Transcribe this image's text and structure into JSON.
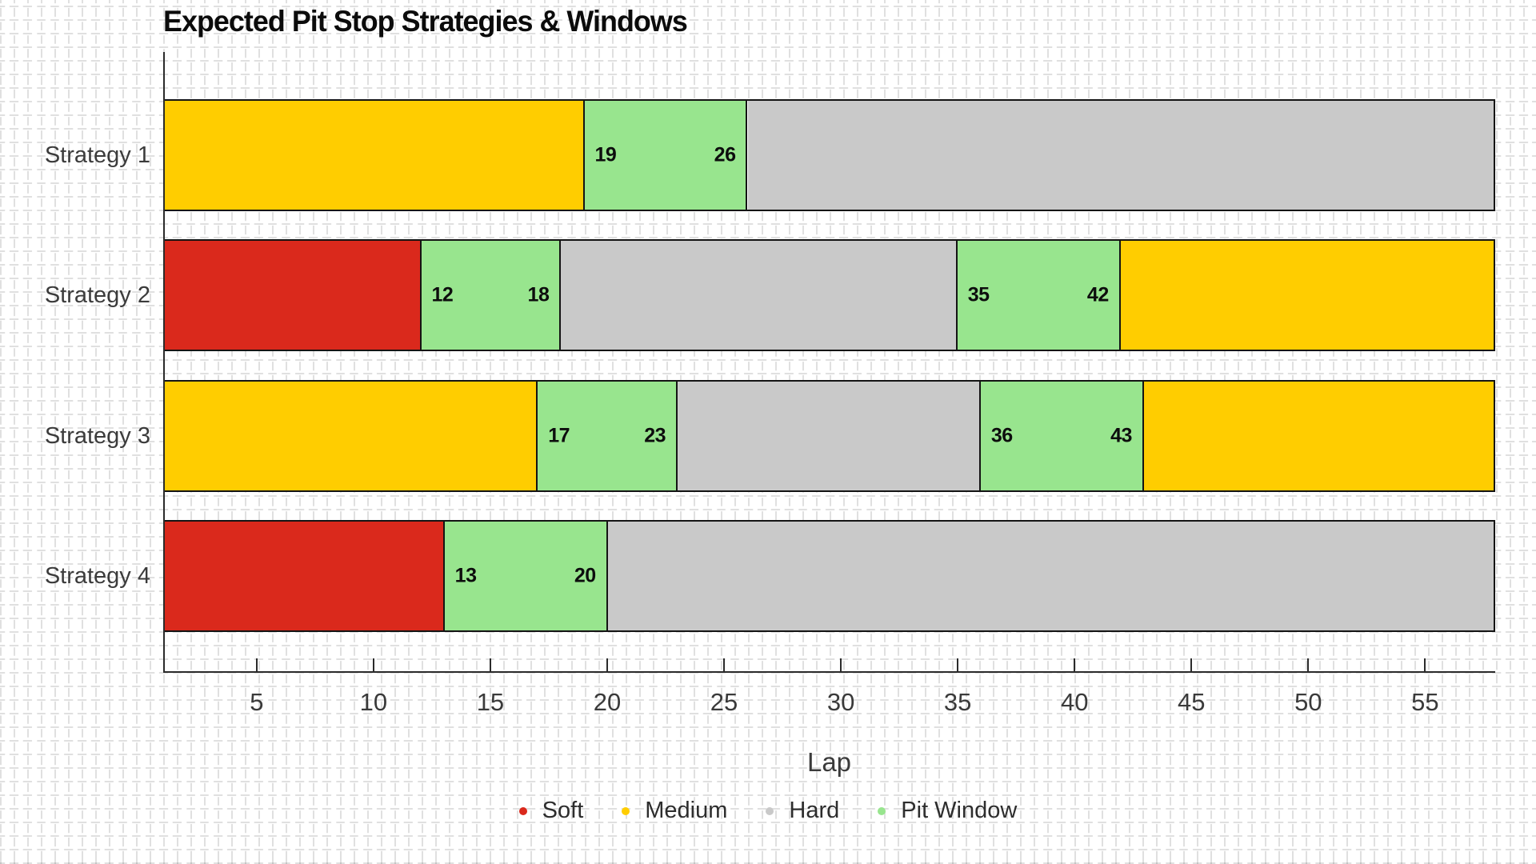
{
  "page": {
    "background_color": "#ffffff"
  },
  "chart_data": {
    "type": "bar",
    "subtype": "horizontal-stacked-timeline",
    "title": "Expected Pit Stop Strategies & Windows",
    "xlabel": "Lap",
    "x_range": [
      1,
      58
    ],
    "x_ticks": [
      5,
      10,
      15,
      20,
      25,
      30,
      35,
      40,
      45,
      50,
      55
    ],
    "grid": "page-wide plus-pattern background",
    "legend_position": "bottom-center",
    "categories": [
      "Strategy 1",
      "Strategy 2",
      "Strategy 3",
      "Strategy 4"
    ],
    "compound_colors": {
      "Soft": "#DA291C",
      "Medium": "#FFCD00",
      "Hard": "#C9C9C9",
      "Pit Window": "#98E58E"
    },
    "legend": [
      {
        "label": "Soft",
        "color": "#DA291C"
      },
      {
        "label": "Medium",
        "color": "#FFCD00"
      },
      {
        "label": "Hard",
        "color": "#C9C9C9"
      },
      {
        "label": "Pit Window",
        "color": "#98E58E"
      }
    ],
    "strategies": [
      {
        "label": "Strategy 1",
        "segments": [
          {
            "compound": "Medium",
            "start_lap": 1,
            "end_lap": 19,
            "labeled": false
          },
          {
            "compound": "Pit Window",
            "start_lap": 19,
            "end_lap": 26,
            "labeled": true
          },
          {
            "compound": "Hard",
            "start_lap": 26,
            "end_lap": 58,
            "labeled": false
          }
        ]
      },
      {
        "label": "Strategy 2",
        "segments": [
          {
            "compound": "Soft",
            "start_lap": 1,
            "end_lap": 12,
            "labeled": false
          },
          {
            "compound": "Pit Window",
            "start_lap": 12,
            "end_lap": 18,
            "labeled": true
          },
          {
            "compound": "Hard",
            "start_lap": 18,
            "end_lap": 35,
            "labeled": false
          },
          {
            "compound": "Pit Window",
            "start_lap": 35,
            "end_lap": 42,
            "labeled": true
          },
          {
            "compound": "Medium",
            "start_lap": 42,
            "end_lap": 58,
            "labeled": false
          }
        ]
      },
      {
        "label": "Strategy 3",
        "segments": [
          {
            "compound": "Medium",
            "start_lap": 1,
            "end_lap": 17,
            "labeled": false
          },
          {
            "compound": "Pit Window",
            "start_lap": 17,
            "end_lap": 23,
            "labeled": true
          },
          {
            "compound": "Hard",
            "start_lap": 23,
            "end_lap": 36,
            "labeled": false
          },
          {
            "compound": "Pit Window",
            "start_lap": 36,
            "end_lap": 43,
            "labeled": true
          },
          {
            "compound": "Medium",
            "start_lap": 43,
            "end_lap": 58,
            "labeled": false
          }
        ]
      },
      {
        "label": "Strategy 4",
        "segments": [
          {
            "compound": "Soft",
            "start_lap": 1,
            "end_lap": 13,
            "labeled": false
          },
          {
            "compound": "Pit Window",
            "start_lap": 13,
            "end_lap": 20,
            "labeled": true
          },
          {
            "compound": "Hard",
            "start_lap": 20,
            "end_lap": 58,
            "labeled": false
          }
        ]
      }
    ]
  }
}
